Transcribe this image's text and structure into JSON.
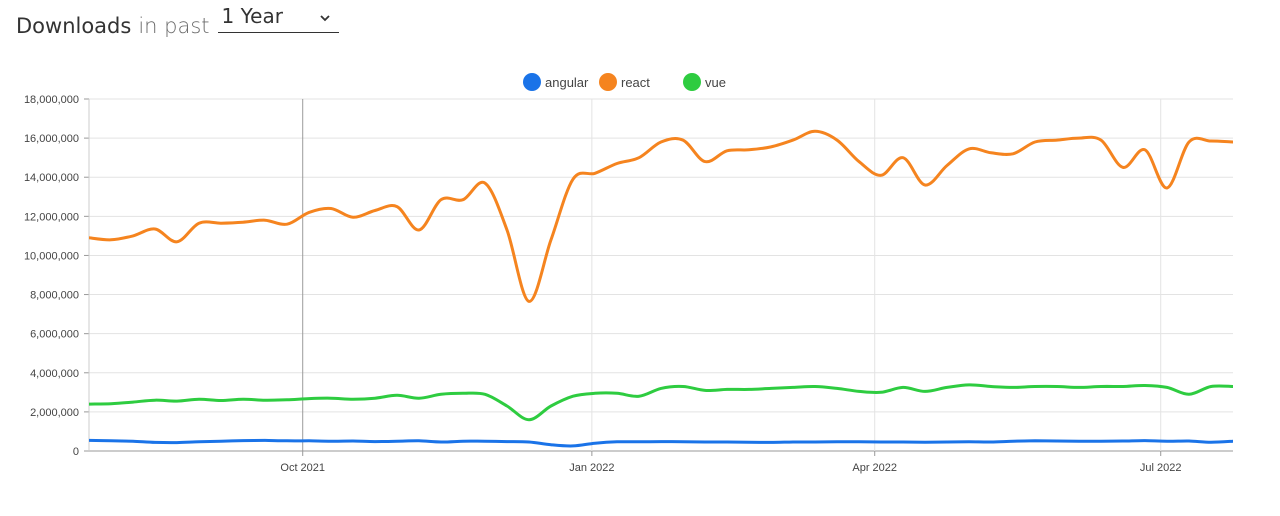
{
  "header": {
    "title": "Downloads",
    "connector": "in past",
    "period": "1 Year",
    "period_icon": "chevron-down-icon"
  },
  "chart_data": {
    "type": "line",
    "ylim": [
      0,
      18000000
    ],
    "yticks": [
      0,
      2000000,
      4000000,
      6000000,
      8000000,
      10000000,
      12000000,
      14000000,
      16000000,
      18000000
    ],
    "ytick_labels": [
      "0",
      "2,000,000",
      "4,000,000",
      "6,000,000",
      "8,000,000",
      "10,000,000",
      "12,000,000",
      "14,000,000",
      "16,000,000",
      "18,000,000"
    ],
    "xlim": [
      "2021-07-25",
      "2022-07-24"
    ],
    "xticks": [
      "2021-10-01",
      "2022-01-01",
      "2022-04-01",
      "2022-07-01"
    ],
    "xtick_labels": [
      "Oct 2021",
      "Jan 2022",
      "Apr 2022",
      "Jul 2022"
    ],
    "grid": true,
    "legend_position": "top-center",
    "x": [
      "2021-07-25",
      "2021-08-01",
      "2021-08-08",
      "2021-08-15",
      "2021-08-22",
      "2021-08-29",
      "2021-09-05",
      "2021-09-12",
      "2021-09-19",
      "2021-09-26",
      "2021-10-03",
      "2021-10-10",
      "2021-10-17",
      "2021-10-24",
      "2021-10-31",
      "2021-11-07",
      "2021-11-14",
      "2021-11-21",
      "2021-11-28",
      "2021-12-05",
      "2021-12-12",
      "2021-12-19",
      "2021-12-26",
      "2022-01-02",
      "2022-01-09",
      "2022-01-16",
      "2022-01-23",
      "2022-01-30",
      "2022-02-06",
      "2022-02-13",
      "2022-02-20",
      "2022-02-27",
      "2022-03-06",
      "2022-03-13",
      "2022-03-20",
      "2022-03-27",
      "2022-04-03",
      "2022-04-10",
      "2022-04-17",
      "2022-04-24",
      "2022-05-01",
      "2022-05-08",
      "2022-05-15",
      "2022-05-22",
      "2022-05-29",
      "2022-06-05",
      "2022-06-12",
      "2022-06-19",
      "2022-06-26",
      "2022-07-03",
      "2022-07-10",
      "2022-07-17",
      "2022-07-24"
    ],
    "series": [
      {
        "name": "angular",
        "color": "#1a73e8",
        "values": [
          540000,
          520000,
          500000,
          440000,
          430000,
          470000,
          500000,
          530000,
          540000,
          520000,
          520000,
          500000,
          510000,
          480000,
          500000,
          520000,
          460000,
          500000,
          500000,
          480000,
          460000,
          320000,
          260000,
          400000,
          470000,
          470000,
          480000,
          470000,
          460000,
          460000,
          450000,
          440000,
          460000,
          460000,
          470000,
          470000,
          460000,
          460000,
          450000,
          460000,
          470000,
          460000,
          500000,
          520000,
          510000,
          500000,
          500000,
          510000,
          530000,
          500000,
          510000,
          450000,
          500000
        ]
      },
      {
        "name": "react",
        "color": "#f5841f",
        "values": [
          10900000,
          10800000,
          11000000,
          11350000,
          10700000,
          11650000,
          11650000,
          11700000,
          11800000,
          11600000,
          12200000,
          12400000,
          11950000,
          12300000,
          12500000,
          11300000,
          12850000,
          12850000,
          13700000,
          11300000,
          7650000,
          10800000,
          13900000,
          14200000,
          14700000,
          15000000,
          15800000,
          15900000,
          14800000,
          15350000,
          15400000,
          15550000,
          15900000,
          16350000,
          15900000,
          14800000,
          14100000,
          15000000,
          13600000,
          14600000,
          15450000,
          15250000,
          15200000,
          15800000,
          15900000,
          16000000,
          15900000,
          14500000,
          15400000,
          13450000,
          15800000,
          15850000,
          15800000
        ]
      },
      {
        "name": "vue",
        "color": "#2ecc40",
        "values": [
          2400000,
          2420000,
          2500000,
          2600000,
          2550000,
          2650000,
          2580000,
          2650000,
          2600000,
          2620000,
          2680000,
          2700000,
          2650000,
          2700000,
          2850000,
          2700000,
          2900000,
          2950000,
          2900000,
          2300000,
          1600000,
          2300000,
          2800000,
          2950000,
          2950000,
          2800000,
          3200000,
          3300000,
          3100000,
          3150000,
          3150000,
          3200000,
          3250000,
          3300000,
          3200000,
          3050000,
          3000000,
          3250000,
          3050000,
          3250000,
          3380000,
          3300000,
          3250000,
          3300000,
          3300000,
          3250000,
          3300000,
          3300000,
          3350000,
          3250000,
          2900000,
          3300000,
          3300000
        ]
      }
    ]
  }
}
